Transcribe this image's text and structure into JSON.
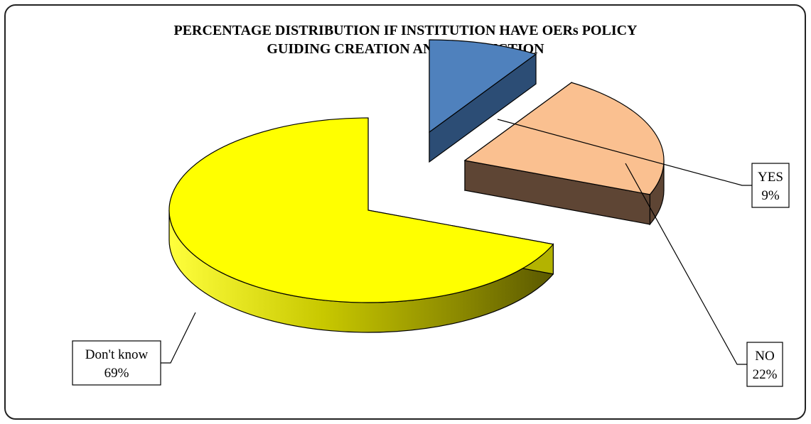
{
  "chart_data": {
    "type": "pie",
    "title_lines": [
      "PERCENTAGE DISTRIBUTION IF INSTITUTION HAVE OERs POLICY",
      "GUIDING CREATION AND PRODUCTION"
    ],
    "slices": [
      {
        "label": "YES",
        "value": 9,
        "display": "9%",
        "color_top": "#4f81bd",
        "color_side": "#2c4d75"
      },
      {
        "label": "NO",
        "value": 22,
        "display": "22%",
        "color_top": "#fac090",
        "color_side": "#5e4534"
      },
      {
        "label": "Don't know",
        "value": 69,
        "display": "69%",
        "color_top": "#ffff00",
        "color_side": "#b3b300"
      }
    ],
    "style": "3d-exploded",
    "legend": "none"
  }
}
